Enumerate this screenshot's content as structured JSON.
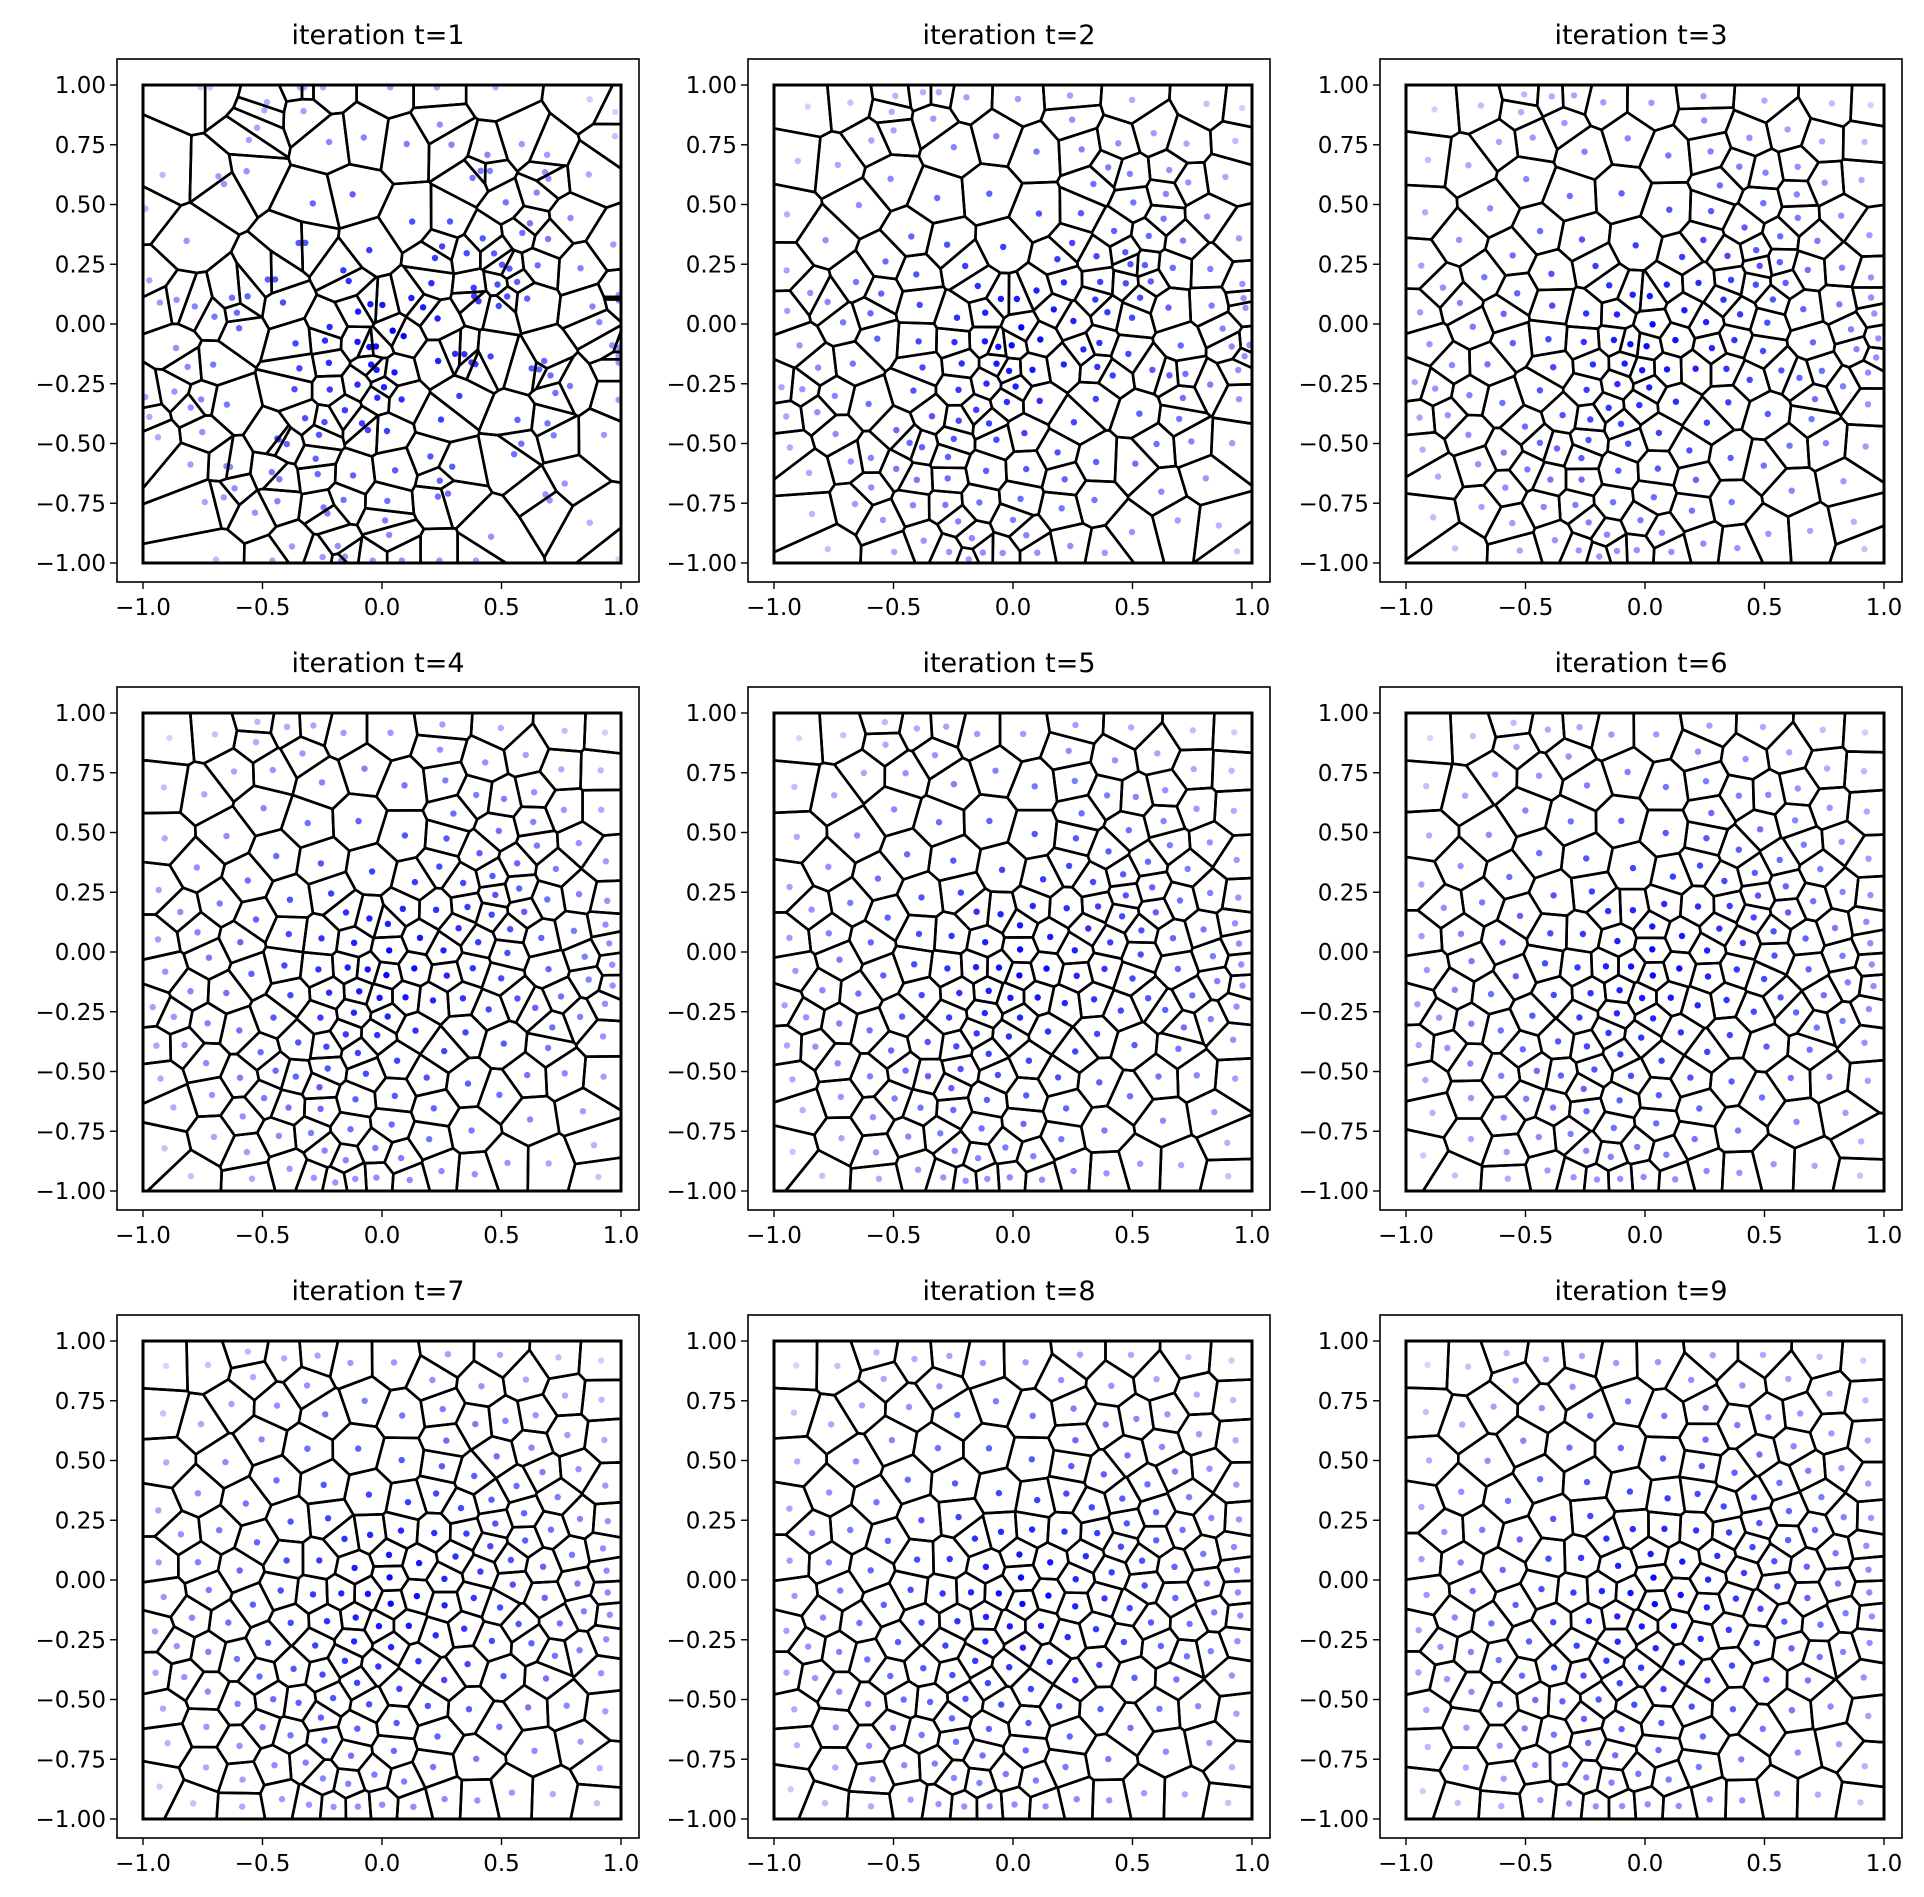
{
  "chart_data": [
    {
      "type": "scatter",
      "title": "iteration t=1",
      "iteration": 1,
      "xlim": [
        -1.1,
        1.1
      ],
      "ylim": [
        -1.1,
        1.1
      ],
      "xticks": [
        "−1.0",
        "−0.5",
        "0.0",
        "0.5",
        "1.0"
      ],
      "yticks": [
        "−1.00",
        "−0.75",
        "−0.50",
        "−0.25",
        "0.00",
        "0.25",
        "0.50",
        "0.75",
        "1.00"
      ],
      "boundary": [
        [
          -1,
          -1
        ],
        [
          1,
          -1
        ],
        [
          1,
          1
        ],
        [
          -1,
          1
        ]
      ],
      "point_color": "#0000ff",
      "edge_color": "#000000",
      "seed": 11
    },
    {
      "type": "scatter",
      "title": "iteration t=2",
      "iteration": 2,
      "xlim": [
        -1.1,
        1.1
      ],
      "ylim": [
        -1.1,
        1.1
      ],
      "xticks": [
        "−1.0",
        "−0.5",
        "0.0",
        "0.5",
        "1.0"
      ],
      "yticks": [
        "−1.00",
        "−0.75",
        "−0.50",
        "−0.25",
        "0.00",
        "0.25",
        "0.50",
        "0.75",
        "1.00"
      ],
      "boundary": [
        [
          -1,
          -1
        ],
        [
          1,
          -1
        ],
        [
          1,
          1
        ],
        [
          -1,
          1
        ]
      ],
      "point_color": "#0000ff",
      "edge_color": "#000000",
      "seed": 11
    },
    {
      "type": "scatter",
      "title": "iteration t=3",
      "iteration": 3,
      "xlim": [
        -1.1,
        1.1
      ],
      "ylim": [
        -1.1,
        1.1
      ],
      "xticks": [
        "−1.0",
        "−0.5",
        "0.0",
        "0.5",
        "1.0"
      ],
      "yticks": [
        "−1.00",
        "−0.75",
        "−0.50",
        "−0.25",
        "0.00",
        "0.25",
        "0.50",
        "0.75",
        "1.00"
      ],
      "boundary": [
        [
          -1,
          -1
        ],
        [
          1,
          -1
        ],
        [
          1,
          1
        ],
        [
          -1,
          1
        ]
      ],
      "point_color": "#0000ff",
      "edge_color": "#000000",
      "seed": 11
    },
    {
      "type": "scatter",
      "title": "iteration t=4",
      "iteration": 4,
      "xlim": [
        -1.1,
        1.1
      ],
      "ylim": [
        -1.1,
        1.1
      ],
      "xticks": [
        "−1.0",
        "−0.5",
        "0.0",
        "0.5",
        "1.0"
      ],
      "yticks": [
        "−1.00",
        "−0.75",
        "−0.50",
        "−0.25",
        "0.00",
        "0.25",
        "0.50",
        "0.75",
        "1.00"
      ],
      "boundary": [
        [
          -1,
          -1
        ],
        [
          1,
          -1
        ],
        [
          1,
          1
        ],
        [
          -1,
          1
        ]
      ],
      "point_color": "#0000ff",
      "edge_color": "#000000",
      "seed": 11
    },
    {
      "type": "scatter",
      "title": "iteration t=5",
      "iteration": 5,
      "xlim": [
        -1.1,
        1.1
      ],
      "ylim": [
        -1.1,
        1.1
      ],
      "xticks": [
        "−1.0",
        "−0.5",
        "0.0",
        "0.5",
        "1.0"
      ],
      "yticks": [
        "−1.00",
        "−0.75",
        "−0.50",
        "−0.25",
        "0.00",
        "0.25",
        "0.50",
        "0.75",
        "1.00"
      ],
      "boundary": [
        [
          -1,
          -1
        ],
        [
          1,
          -1
        ],
        [
          1,
          1
        ],
        [
          -1,
          1
        ]
      ],
      "point_color": "#0000ff",
      "edge_color": "#000000",
      "seed": 11
    },
    {
      "type": "scatter",
      "title": "iteration t=6",
      "iteration": 6,
      "xlim": [
        -1.1,
        1.1
      ],
      "ylim": [
        -1.1,
        1.1
      ],
      "xticks": [
        "−1.0",
        "−0.5",
        "0.0",
        "0.5",
        "1.0"
      ],
      "yticks": [
        "−1.00",
        "−0.75",
        "−0.50",
        "−0.25",
        "0.00",
        "0.25",
        "0.50",
        "0.75",
        "1.00"
      ],
      "boundary": [
        [
          -1,
          -1
        ],
        [
          1,
          -1
        ],
        [
          1,
          1
        ],
        [
          -1,
          1
        ]
      ],
      "point_color": "#0000ff",
      "edge_color": "#000000",
      "seed": 11
    },
    {
      "type": "scatter",
      "title": "iteration t=7",
      "iteration": 7,
      "xlim": [
        -1.1,
        1.1
      ],
      "ylim": [
        -1.1,
        1.1
      ],
      "xticks": [
        "−1.0",
        "−0.5",
        "0.0",
        "0.5",
        "1.0"
      ],
      "yticks": [
        "−1.00",
        "−0.75",
        "−0.50",
        "−0.25",
        "0.00",
        "0.25",
        "0.50",
        "0.75",
        "1.00"
      ],
      "boundary": [
        [
          -1,
          -1
        ],
        [
          1,
          -1
        ],
        [
          1,
          1
        ],
        [
          -1,
          1
        ]
      ],
      "point_color": "#0000ff",
      "edge_color": "#000000",
      "seed": 11
    },
    {
      "type": "scatter",
      "title": "iteration t=8",
      "iteration": 8,
      "xlim": [
        -1.1,
        1.1
      ],
      "ylim": [
        -1.1,
        1.1
      ],
      "xticks": [
        "−1.0",
        "−0.5",
        "0.0",
        "0.5",
        "1.0"
      ],
      "yticks": [
        "−1.00",
        "−0.75",
        "−0.50",
        "−0.25",
        "0.00",
        "0.25",
        "0.50",
        "0.75",
        "1.00"
      ],
      "boundary": [
        [
          -1,
          -1
        ],
        [
          1,
          -1
        ],
        [
          1,
          1
        ],
        [
          -1,
          1
        ]
      ],
      "point_color": "#0000ff",
      "edge_color": "#000000",
      "seed": 11
    },
    {
      "type": "scatter",
      "title": "iteration t=9",
      "iteration": 9,
      "xlim": [
        -1.1,
        1.1
      ],
      "ylim": [
        -1.1,
        1.1
      ],
      "xticks": [
        "−1.0",
        "−0.5",
        "0.0",
        "0.5",
        "1.0"
      ],
      "yticks": [
        "−1.00",
        "−0.75",
        "−0.50",
        "−0.25",
        "0.00",
        "0.25",
        "0.50",
        "0.75",
        "1.00"
      ],
      "boundary": [
        [
          -1,
          -1
        ],
        [
          1,
          -1
        ],
        [
          1,
          1
        ],
        [
          -1,
          1
        ]
      ],
      "point_color": "#0000ff",
      "edge_color": "#000000",
      "seed": 11
    }
  ]
}
